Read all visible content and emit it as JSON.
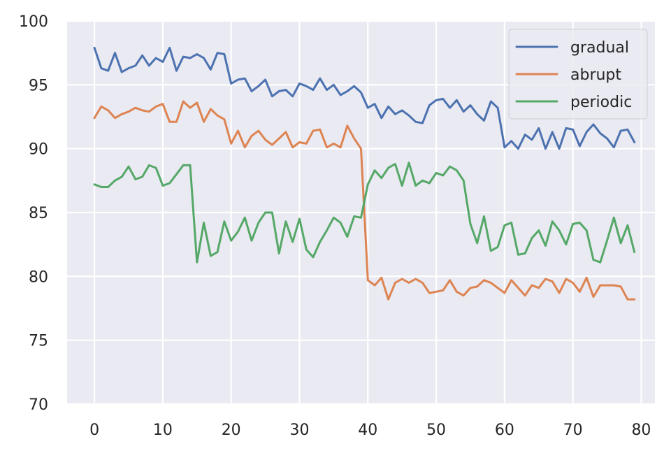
{
  "chart_data": {
    "type": "line",
    "title": "",
    "xlabel": "",
    "ylabel": "",
    "xlim": [
      -4,
      82
    ],
    "ylim": [
      70,
      100
    ],
    "xticks": [
      0,
      10,
      20,
      30,
      40,
      50,
      60,
      70,
      80
    ],
    "yticks": [
      70,
      75,
      80,
      85,
      90,
      95,
      100
    ],
    "xtick_labels": [
      "0",
      "10",
      "20",
      "30",
      "40",
      "50",
      "60",
      "70",
      "80"
    ],
    "ytick_labels": [
      "70",
      "75",
      "80",
      "85",
      "90",
      "95",
      "100"
    ],
    "grid": true,
    "legend_position": "top-right",
    "background": "#eaeaf2",
    "x": [
      0,
      1,
      2,
      3,
      4,
      5,
      6,
      7,
      8,
      9,
      10,
      11,
      12,
      13,
      14,
      15,
      16,
      17,
      18,
      19,
      20,
      21,
      22,
      23,
      24,
      25,
      26,
      27,
      28,
      29,
      30,
      31,
      32,
      33,
      34,
      35,
      36,
      37,
      38,
      39,
      40,
      41,
      42,
      43,
      44,
      45,
      46,
      47,
      48,
      49,
      50,
      51,
      52,
      53,
      54,
      55,
      56,
      57,
      58,
      59,
      60,
      61,
      62,
      63,
      64,
      65,
      66,
      67,
      68,
      69,
      70,
      71,
      72,
      73,
      74,
      75,
      76,
      77,
      78,
      79
    ],
    "series": [
      {
        "name": "gradual",
        "color": "#4c72b0",
        "values": [
          97.9,
          96.3,
          96.1,
          97.5,
          96.0,
          96.3,
          96.5,
          97.3,
          96.5,
          97.1,
          96.8,
          97.9,
          96.1,
          97.2,
          97.1,
          97.4,
          97.1,
          96.2,
          97.5,
          97.4,
          95.1,
          95.4,
          95.5,
          94.5,
          94.9,
          95.4,
          94.1,
          94.5,
          94.6,
          94.1,
          95.1,
          94.9,
          94.6,
          95.5,
          94.6,
          95.0,
          94.2,
          94.5,
          94.9,
          94.4,
          93.2,
          93.5,
          92.4,
          93.3,
          92.7,
          93.0,
          92.6,
          92.1,
          92.0,
          93.4,
          93.8,
          93.9,
          93.2,
          93.8,
          92.9,
          93.4,
          92.7,
          92.2,
          93.7,
          93.2,
          90.1,
          90.6,
          90.0,
          91.1,
          90.7,
          91.6,
          90.0,
          91.3,
          90.0,
          91.6,
          91.5,
          90.2,
          91.3,
          91.9,
          91.2,
          90.8,
          90.1,
          91.4,
          91.5,
          90.5
        ]
      },
      {
        "name": "abrupt",
        "color": "#dd8452",
        "values": [
          92.4,
          93.3,
          93.0,
          92.4,
          92.7,
          92.9,
          93.2,
          93.0,
          92.9,
          93.3,
          93.5,
          92.1,
          92.1,
          93.7,
          93.2,
          93.6,
          92.1,
          93.1,
          92.6,
          92.3,
          90.4,
          91.4,
          90.1,
          91.0,
          91.4,
          90.7,
          90.3,
          90.8,
          91.3,
          90.1,
          90.5,
          90.4,
          91.4,
          91.5,
          90.1,
          90.4,
          90.1,
          91.8,
          90.8,
          90.0,
          79.7,
          79.3,
          79.9,
          78.2,
          79.5,
          79.8,
          79.5,
          79.8,
          79.5,
          78.7,
          78.8,
          78.9,
          79.7,
          78.8,
          78.5,
          79.1,
          79.2,
          79.7,
          79.5,
          79.1,
          78.7,
          79.7,
          79.1,
          78.5,
          79.3,
          79.1,
          79.8,
          79.6,
          78.7,
          79.8,
          79.5,
          78.8,
          79.9,
          78.4,
          79.3,
          79.3,
          79.3,
          79.2,
          78.2,
          78.2
        ]
      },
      {
        "name": "periodic",
        "color": "#55a868",
        "values": [
          87.2,
          87.0,
          87.0,
          87.5,
          87.8,
          88.6,
          87.6,
          87.8,
          88.7,
          88.5,
          87.1,
          87.3,
          88.0,
          88.7,
          88.7,
          81.1,
          84.2,
          81.6,
          81.9,
          84.3,
          82.8,
          83.5,
          84.6,
          82.8,
          84.2,
          85.0,
          85.0,
          81.8,
          84.3,
          82.7,
          84.5,
          82.1,
          81.5,
          82.7,
          83.6,
          84.6,
          84.2,
          83.1,
          84.7,
          84.6,
          87.2,
          88.3,
          87.7,
          88.5,
          88.8,
          87.1,
          88.9,
          87.1,
          87.5,
          87.3,
          88.1,
          87.9,
          88.6,
          88.3,
          87.5,
          84.1,
          82.6,
          84.7,
          82.0,
          82.3,
          84.0,
          84.2,
          81.7,
          81.8,
          83.0,
          83.6,
          82.4,
          84.3,
          83.6,
          82.5,
          84.1,
          84.2,
          83.6,
          81.3,
          81.1,
          82.8,
          84.6,
          82.6,
          84.0,
          81.9
        ]
      }
    ]
  }
}
